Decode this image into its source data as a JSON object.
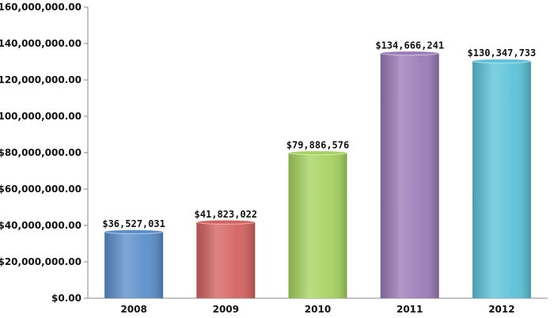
{
  "chart_data": {
    "type": "bar",
    "categories": [
      "2008",
      "2009",
      "2010",
      "2011",
      "2012"
    ],
    "values": [
      36527031,
      41823022,
      79886576,
      134666241,
      130347733
    ],
    "data_labels": [
      "$36,527,031",
      "$41,823,022",
      "$79,886,576",
      "$134,666,241",
      "$130,347,733"
    ],
    "colors": [
      "#5b8ec9",
      "#d4625f",
      "#a6d35f",
      "#9b7bb8",
      "#5cc2d8"
    ],
    "yticks": [
      0,
      20000000,
      40000000,
      60000000,
      80000000,
      100000000,
      120000000,
      140000000,
      160000000
    ],
    "ytick_labels": [
      "$0.00",
      "$20,000,000.00",
      "$40,000,000.00",
      "$60,000,000.00",
      "$80,000,000.00",
      "$100,000,000.00",
      "$120,000,000.00",
      "$140,000,000.00",
      "$160,000,000.00"
    ],
    "ylim": [
      0,
      160000000
    ],
    "grid": false,
    "legend": "none"
  }
}
